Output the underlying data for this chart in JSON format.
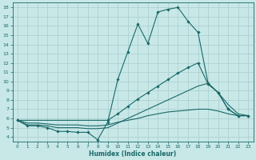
{
  "background_color": "#c8e8e8",
  "grid_color": "#a8cccc",
  "line_color": "#1a6868",
  "xlabel": "Humidex (Indice chaleur)",
  "xlim": [
    -0.5,
    23.5
  ],
  "ylim": [
    3.5,
    18.5
  ],
  "xticks": [
    0,
    1,
    2,
    3,
    4,
    5,
    6,
    7,
    8,
    9,
    10,
    11,
    12,
    13,
    14,
    15,
    16,
    17,
    18,
    19,
    20,
    21,
    22,
    23
  ],
  "yticks": [
    4,
    5,
    6,
    7,
    8,
    9,
    10,
    11,
    12,
    13,
    14,
    15,
    16,
    17,
    18
  ],
  "line1_x": [
    0,
    1,
    2,
    3,
    4,
    5,
    6,
    7,
    8,
    9,
    10,
    11,
    12,
    13,
    14,
    15,
    16,
    17,
    18,
    19,
    20,
    21,
    22,
    23
  ],
  "line1_y": [
    5.8,
    5.2,
    5.2,
    5.0,
    4.6,
    4.6,
    4.5,
    4.5,
    3.7,
    5.6,
    10.2,
    13.2,
    16.2,
    14.1,
    17.5,
    17.8,
    18.0,
    16.5,
    15.3,
    9.8,
    8.8,
    7.0,
    6.3,
    6.3
  ],
  "line2_x": [
    0,
    9,
    10,
    11,
    12,
    13,
    14,
    15,
    16,
    17,
    18,
    19,
    20,
    21,
    22,
    23
  ],
  "line2_y": [
    5.8,
    5.8,
    6.5,
    7.3,
    8.1,
    8.8,
    9.5,
    10.2,
    10.9,
    11.5,
    12.0,
    9.7,
    8.8,
    7.0,
    6.3,
    6.3
  ],
  "line3_x": [
    0,
    1,
    2,
    3,
    4,
    5,
    6,
    7,
    8,
    9,
    10,
    11,
    12,
    13,
    14,
    15,
    16,
    17,
    18,
    19,
    20,
    21,
    22,
    23
  ],
  "line3_y": [
    5.8,
    5.3,
    5.3,
    5.2,
    5.0,
    5.0,
    5.0,
    4.9,
    4.9,
    5.0,
    5.5,
    6.0,
    6.5,
    7.0,
    7.5,
    8.0,
    8.5,
    9.0,
    9.5,
    9.8,
    8.8,
    7.5,
    6.5,
    6.3
  ],
  "line4_x": [
    0,
    1,
    2,
    3,
    4,
    5,
    6,
    7,
    8,
    9,
    10,
    11,
    12,
    13,
    14,
    15,
    16,
    17,
    18,
    19,
    20,
    21,
    22,
    23
  ],
  "line4_y": [
    5.8,
    5.5,
    5.5,
    5.4,
    5.3,
    5.3,
    5.3,
    5.2,
    5.2,
    5.3,
    5.6,
    5.8,
    6.0,
    6.3,
    6.5,
    6.7,
    6.8,
    6.9,
    7.0,
    7.0,
    6.8,
    6.5,
    6.3,
    6.3
  ]
}
